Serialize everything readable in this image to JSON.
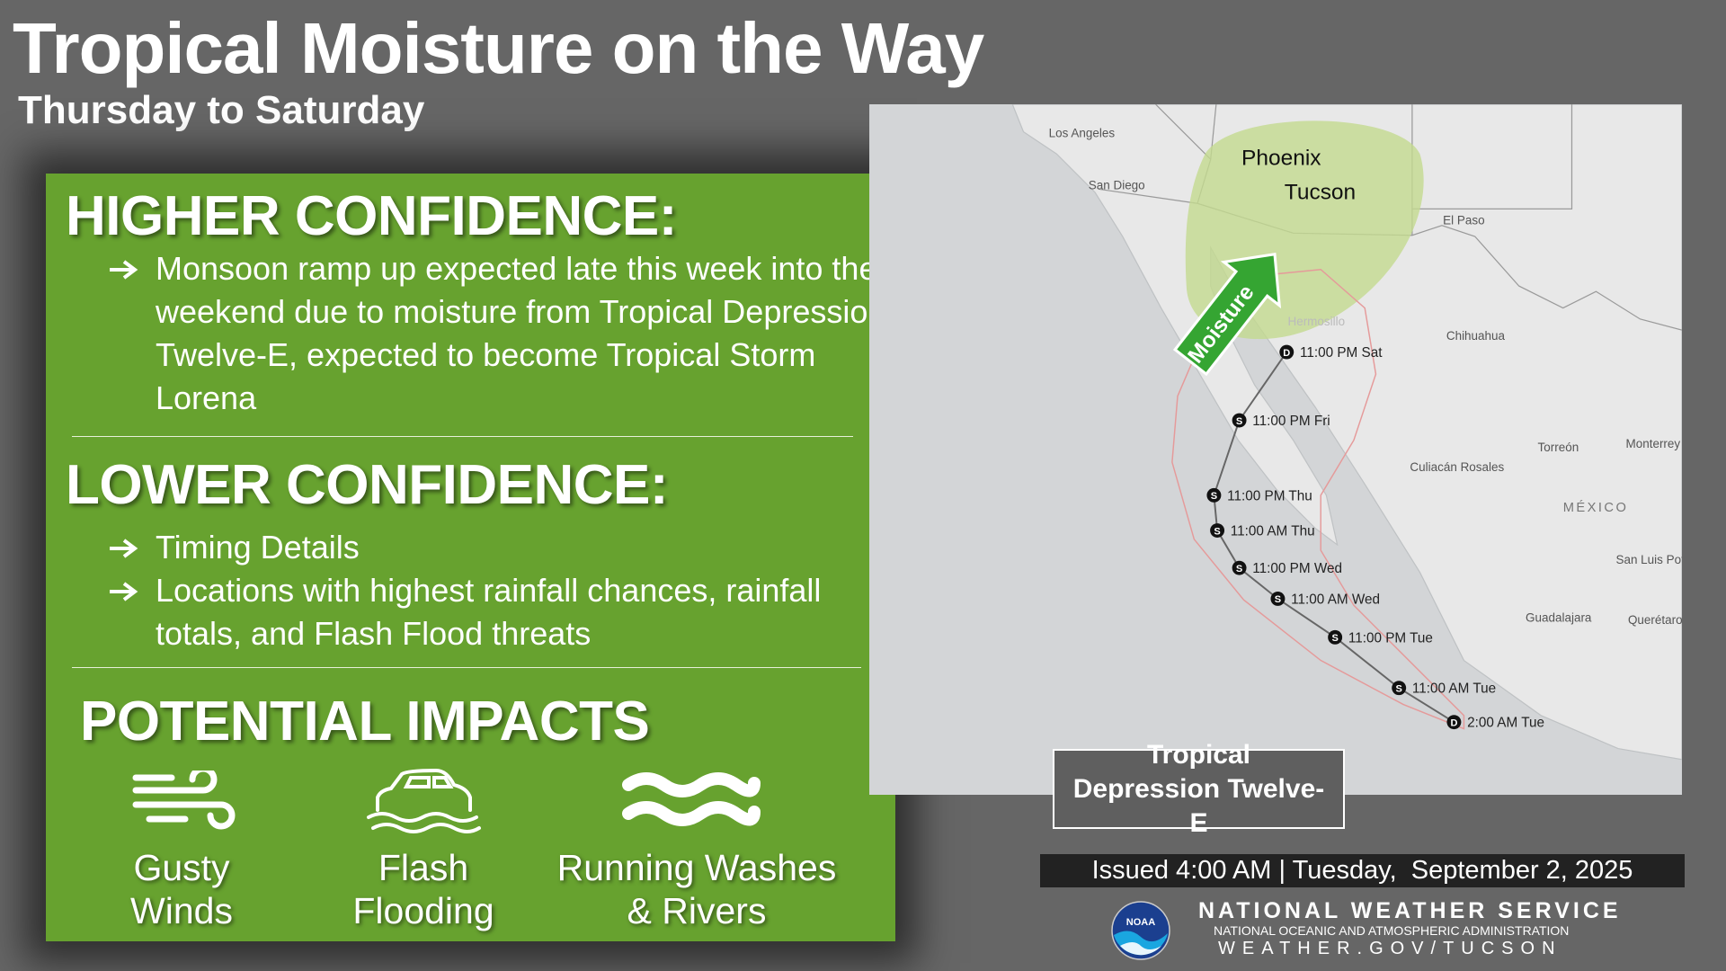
{
  "header": {
    "title": "Tropical Moisture on the Way",
    "subtitle": "Thursday to Saturday"
  },
  "panel": {
    "higher": {
      "heading": "HIGHER CONFIDENCE:",
      "bullets": [
        "Monsoon ramp up expected late this week into the weekend due to moisture from Tropical Depression Twelve-E, expected to become Tropical Storm Lorena"
      ]
    },
    "lower": {
      "heading": "LOWER CONFIDENCE:",
      "bullets": [
        "Timing Details",
        "Locations with highest rainfall chances, rainfall totals, and Flash Flood threats"
      ]
    },
    "impacts": {
      "heading": "POTENTIAL IMPACTS",
      "items": [
        "Gusty Winds",
        "Flash Flooding",
        "Running Washes & Rivers"
      ]
    }
  },
  "map": {
    "places": [
      "Los Angeles",
      "San Diego",
      "El Paso",
      "Hermosillo",
      "Chihuahua",
      "Torreón",
      "Monterrey",
      "Culiacán Rosales",
      "MÉXICO",
      "San Luis Potosí",
      "Guadalajara",
      "Querétaro"
    ],
    "highlight": [
      "Phoenix",
      "Tucson"
    ],
    "arrow": "Moisture",
    "track": [
      {
        "symbol": "D",
        "label": "11:00 PM Sat"
      },
      {
        "symbol": "S",
        "label": "11:00 PM Fri"
      },
      {
        "symbol": "S",
        "label": "11:00 PM Thu"
      },
      {
        "symbol": "S",
        "label": "11:00 AM Thu"
      },
      {
        "symbol": "S",
        "label": "11:00 PM Wed"
      },
      {
        "symbol": "S",
        "label": "11:00 AM Wed"
      },
      {
        "symbol": "S",
        "label": "11:00 PM Tue"
      },
      {
        "symbol": "S",
        "label": "11:00 AM Tue"
      },
      {
        "symbol": "D",
        "label": "2:00 AM Tue"
      }
    ],
    "legend": "Tropical Depression Twelve-E"
  },
  "footer": {
    "issued": "Issued 4:00 AM | Tuesday,  September 2, 2025",
    "logo": "NOAA",
    "agency": "NATIONAL WEATHER SERVICE",
    "subagency": "NATIONAL OCEANIC AND ATMOSPHERIC ADMINISTRATION",
    "url": "WEATHER.GOV/TUCSON"
  }
}
